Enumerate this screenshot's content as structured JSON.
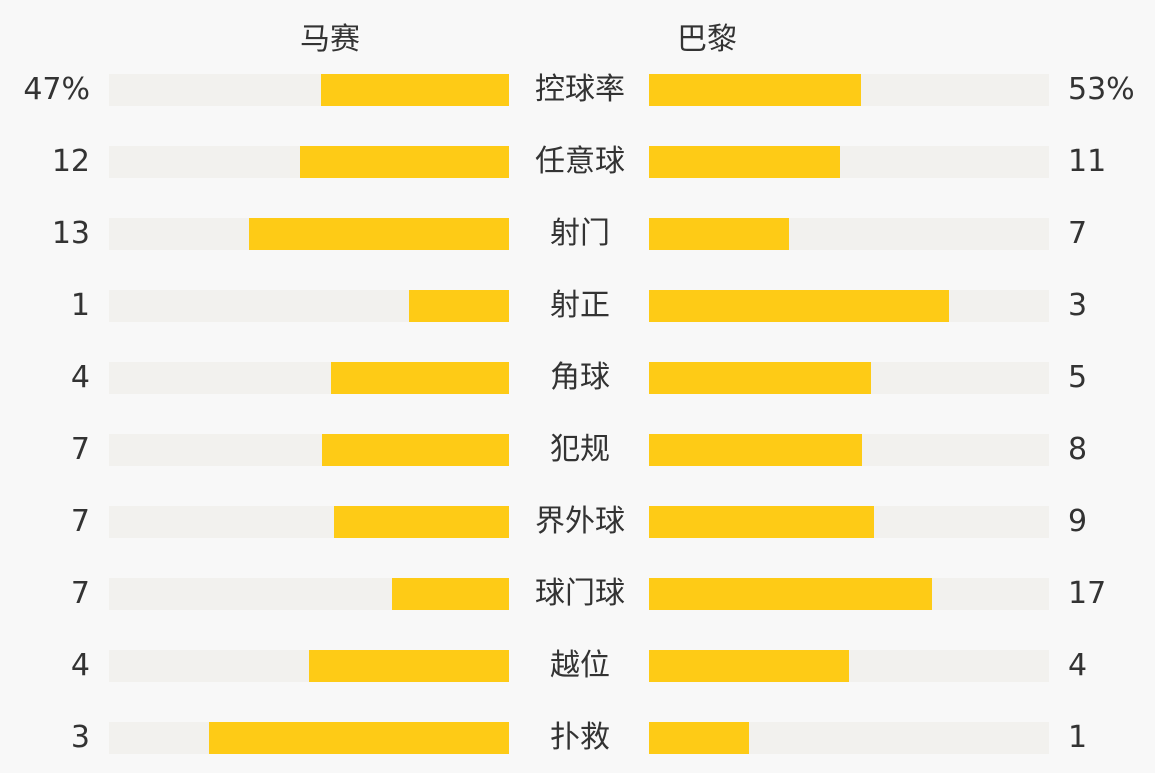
{
  "chart_data": {
    "type": "bar",
    "orientation": "horizontal-diverging",
    "categories": [
      "控球率",
      "任意球",
      "射门",
      "射正",
      "角球",
      "犯规",
      "界外球",
      "球门球",
      "越位",
      "扑救"
    ],
    "series": [
      {
        "name": "马赛",
        "values": [
          47,
          12,
          13,
          1,
          4,
          7,
          7,
          7,
          4,
          3
        ],
        "labels": [
          "47%",
          "12",
          "13",
          "1",
          "4",
          "7",
          "7",
          "7",
          "4",
          "3"
        ]
      },
      {
        "name": "巴黎",
        "values": [
          53,
          11,
          7,
          3,
          5,
          8,
          9,
          17,
          4,
          1
        ],
        "labels": [
          "53%",
          "11",
          "7",
          "3",
          "5",
          "8",
          "9",
          "17",
          "4",
          "1"
        ]
      }
    ],
    "colors": {
      "fill": "#fecb16",
      "track": "#f2f1ee",
      "background": "#f8f8f8",
      "text": "#333333"
    }
  }
}
